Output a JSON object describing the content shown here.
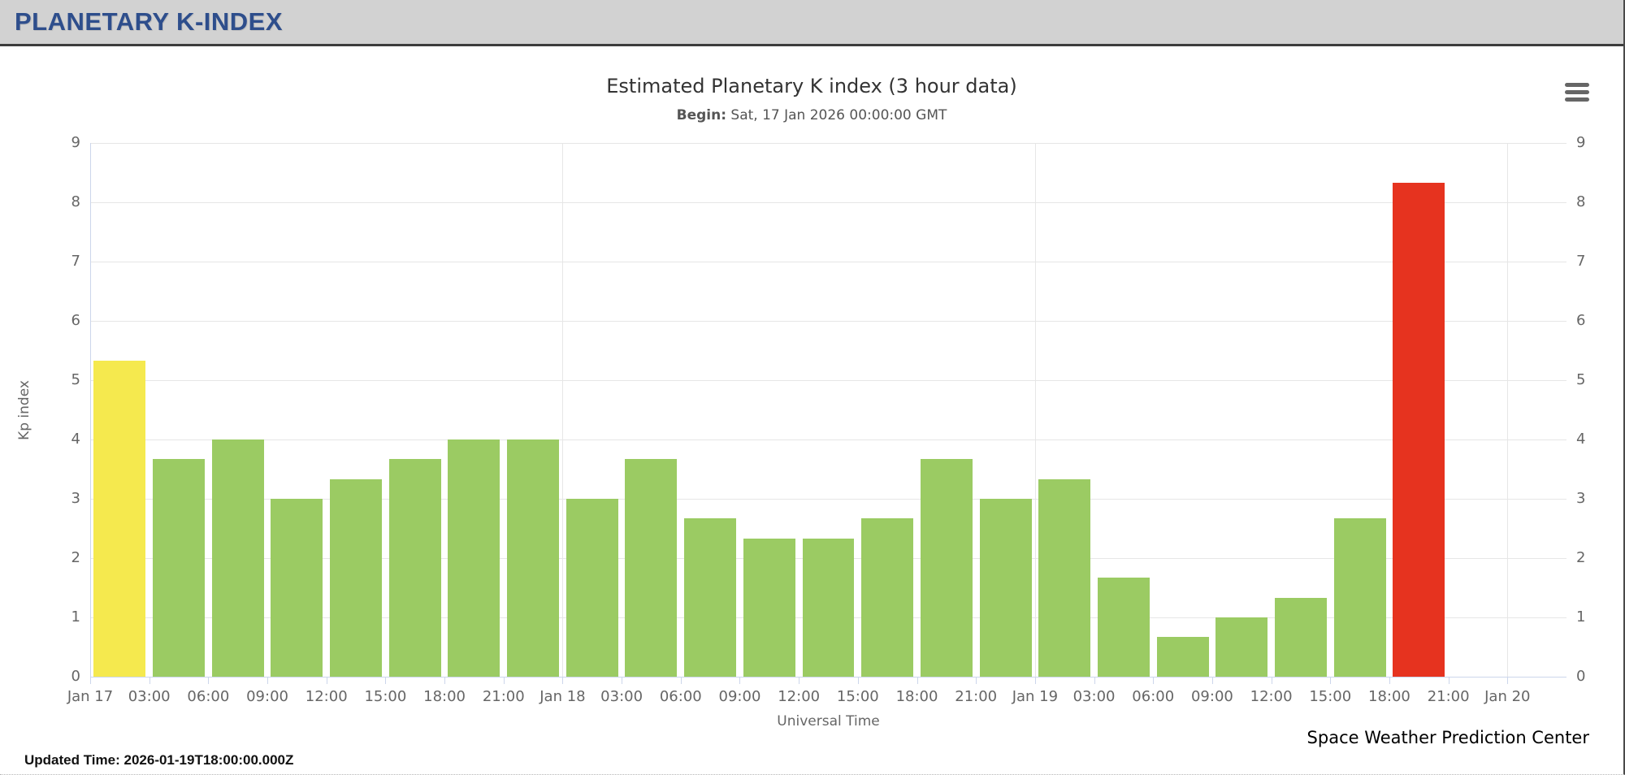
{
  "page": {
    "header_title": "PLANETARY K-INDEX",
    "updated_label": "Updated Time:",
    "updated_value": "2026-01-19T18:00:00.000Z",
    "credit": "Space Weather Prediction Center"
  },
  "chart": {
    "title": "Estimated Planetary K index (3 hour data)",
    "subtitle_label": "Begin:",
    "subtitle_value": "Sat, 17 Jan 2026 00:00:00 GMT",
    "menu_icon": "hamburger-icon"
  },
  "chart_data": {
    "type": "bar",
    "title": "Estimated Planetary K index (3 hour data)",
    "subtitle": "Begin: Sat, 17 Jan 2026 00:00:00 GMT",
    "xlabel": "Universal Time",
    "ylabel": "Kp index",
    "ylim": [
      0,
      9
    ],
    "y_ticks": [
      0,
      1,
      2,
      3,
      4,
      5,
      6,
      7,
      8,
      9
    ],
    "x_tick_labels": [
      "Jan 17",
      "03:00",
      "06:00",
      "09:00",
      "12:00",
      "15:00",
      "18:00",
      "21:00",
      "Jan 18",
      "03:00",
      "06:00",
      "09:00",
      "12:00",
      "15:00",
      "18:00",
      "21:00",
      "Jan 19",
      "03:00",
      "06:00",
      "09:00",
      "12:00",
      "15:00",
      "18:00",
      "21:00",
      "Jan 20"
    ],
    "categories": [
      "Jan 17",
      "03:00",
      "06:00",
      "09:00",
      "12:00",
      "15:00",
      "18:00",
      "21:00",
      "Jan 18",
      "03:00",
      "06:00",
      "09:00",
      "12:00",
      "15:00",
      "18:00",
      "21:00",
      "Jan 19",
      "03:00",
      "06:00",
      "09:00",
      "12:00",
      "15:00",
      "18:00",
      "21:00"
    ],
    "values": [
      5.33,
      3.67,
      4,
      3,
      3.33,
      3.67,
      4,
      4,
      3,
      3.67,
      2.67,
      2.33,
      2.33,
      2.67,
      3.67,
      3,
      3.33,
      1.67,
      0.67,
      1,
      1.33,
      2.67,
      8.33,
      null
    ],
    "day_boundary_tick_indices": [
      8,
      16,
      24
    ],
    "slots_total": 25,
    "grid": true,
    "legend": false,
    "colors": {
      "green": "#9bcb63",
      "yellow": "#f5e94e",
      "red": "#e6331f",
      "grid": "#e6e6e6",
      "axis_line": "#ccd6eb",
      "label_text": "#666666"
    },
    "color_thresholds": {
      "yellow_min": 5,
      "red_min": 6
    }
  }
}
